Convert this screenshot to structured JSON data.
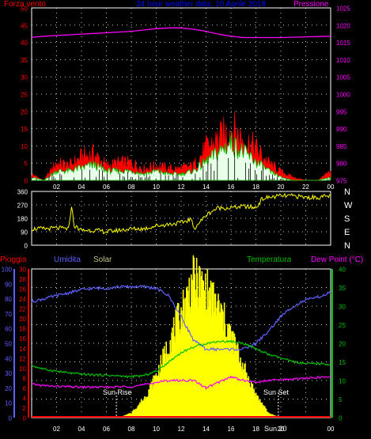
{
  "colors": {
    "wind": "#ff0000",
    "gust_fill": "#ff0000",
    "wind_avg": "#00c800",
    "wind_inner": "#e0ffe0",
    "pressure": "#ff00ff",
    "direction": "#ffff00",
    "humidity": "#6060ff",
    "temperature": "#00c000",
    "dew": "#ff00ff",
    "solar": "#ffff00",
    "rain": "#ff0000",
    "title": "#0000ff",
    "frame": "#ffffff",
    "grid": "#ffffff"
  },
  "chart_data": [
    {
      "type": "area",
      "name": "wind",
      "title": "24 hour weather data, 10 Aprile 2019",
      "left_label": "Forza vento",
      "right_label": "Pressione",
      "left_ticks": [
        "50",
        "45",
        "40",
        "35",
        "30",
        "25",
        "20",
        "15",
        "10",
        "5",
        "0"
      ],
      "right_ticks": [
        "1025",
        "1020",
        "1015",
        "1010",
        "1005",
        "1000",
        "995",
        "990",
        "985",
        "980",
        "975"
      ],
      "x_ticks": [
        "02",
        "04",
        "06",
        "08",
        "10",
        "12",
        "14",
        "16",
        "18",
        "20",
        "22",
        "00"
      ],
      "ylim_left": [
        0,
        50
      ],
      "ylim_right": [
        975,
        1025
      ],
      "hours": [
        0,
        1,
        2,
        3,
        4,
        5,
        6,
        7,
        8,
        9,
        10,
        11,
        12,
        13,
        14,
        15,
        16,
        17,
        18,
        19,
        20,
        21,
        22,
        23,
        24
      ],
      "pressure": [
        1016.5,
        1016.8,
        1017,
        1017.2,
        1017.4,
        1017.6,
        1017.8,
        1018,
        1018.2,
        1018.6,
        1019,
        1019.2,
        1019.2,
        1018.8,
        1018.2,
        1017.4,
        1016.8,
        1016.4,
        1016.4,
        1016.4,
        1016.4,
        1016.5,
        1016.6,
        1016.7,
        1016.8
      ],
      "wind_gust": [
        2,
        0,
        6,
        5,
        8,
        9,
        5,
        6,
        6,
        4,
        5,
        4,
        4,
        5,
        11,
        14,
        18,
        14,
        11,
        6,
        3,
        1,
        0,
        0,
        3
      ],
      "wind_avg": [
        1,
        0,
        3,
        3,
        4,
        5,
        3,
        3,
        3,
        2,
        3,
        2,
        2,
        3,
        6,
        9,
        12,
        9,
        6,
        3,
        1,
        0,
        0,
        0,
        1
      ]
    },
    {
      "type": "line",
      "name": "direction",
      "left_ticks": [
        "360",
        "270",
        "180",
        "90",
        "0"
      ],
      "right_ticks": [
        "N",
        "W",
        "S",
        "E",
        "N"
      ],
      "ylim": [
        0,
        360
      ],
      "hours": [
        0,
        1,
        2,
        3,
        3.2,
        3.4,
        4,
        5,
        6,
        7,
        8,
        9,
        10,
        11,
        12,
        12.8,
        13,
        14,
        14.5,
        15,
        16,
        17,
        18,
        18.5,
        19,
        20,
        21,
        22,
        23,
        24
      ],
      "values": [
        110,
        110,
        115,
        110,
        270,
        130,
        100,
        100,
        90,
        100,
        110,
        110,
        130,
        140,
        150,
        175,
        110,
        200,
        230,
        250,
        250,
        260,
        250,
        310,
        320,
        330,
        330,
        320,
        320,
        330
      ]
    },
    {
      "type": "line",
      "name": "weather",
      "left_label_1": "Pioggia",
      "left_label_2": "Umidita",
      "left_label_3": "Solar",
      "right_label_1": "Temperatura",
      "right_label_2": "Dew Point (°C)",
      "rain_ticks": [
        "100",
        "90",
        "80",
        "70",
        "60",
        "50",
        "40",
        "30",
        "20",
        "10",
        "0"
      ],
      "hum_ticks": [
        "30",
        "28",
        "26",
        "24",
        "22",
        "20",
        "18",
        "16",
        "14",
        "12",
        "10",
        "8",
        "6",
        "4",
        "2",
        "0"
      ],
      "temp_ticks": [
        "40",
        "35",
        "30",
        "25",
        "20",
        "15",
        "10",
        "5",
        "0"
      ],
      "x_ticks": [
        "02",
        "04",
        "06",
        "08",
        "10",
        "12",
        "14",
        "16",
        "18",
        "20",
        "22",
        "00"
      ],
      "sunrise_label": "Sun Rise",
      "sunset_label": "Sun Set",
      "x_end_label": "Sun 20",
      "sunrise_hour": 6.8,
      "sunset_hour": 19.8,
      "hours": [
        0,
        1,
        2,
        3,
        4,
        5,
        6,
        7,
        8,
        9,
        10,
        11,
        12,
        13,
        14,
        15,
        16,
        17,
        18,
        19,
        20,
        21,
        22,
        23,
        24
      ],
      "humidity": [
        78,
        80,
        82,
        84,
        86,
        87,
        87,
        88,
        88,
        88,
        87,
        82,
        68,
        52,
        46,
        46,
        46,
        46,
        50,
        58,
        68,
        75,
        79,
        81,
        84
      ],
      "temperature": [
        14,
        13,
        12.5,
        12,
        11.7,
        11.5,
        11.4,
        11.2,
        11,
        11.3,
        12.5,
        15,
        17.5,
        19,
        20,
        20.5,
        20.5,
        20,
        18.5,
        17,
        16,
        15,
        14.5,
        14.5,
        14.3
      ],
      "dew_point": [
        9,
        8.6,
        8.4,
        8.3,
        8.2,
        8.2,
        8.2,
        8.3,
        8.4,
        8.8,
        9.5,
        10,
        10,
        10,
        8,
        9.5,
        11,
        10,
        9.5,
        10,
        10.2,
        10.4,
        10.6,
        10.8,
        11
      ],
      "solar": [
        0,
        0,
        0,
        0,
        0,
        0,
        0,
        0,
        1,
        4,
        9,
        16,
        23,
        30,
        28,
        24,
        18,
        11,
        5,
        1,
        0,
        0,
        0,
        0,
        0
      ],
      "rain": [
        0,
        0,
        0,
        0,
        0,
        0,
        0,
        0,
        0,
        0,
        0,
        0,
        0,
        0,
        0,
        0,
        0,
        0,
        0,
        0,
        0,
        0,
        0,
        0,
        0
      ]
    }
  ]
}
